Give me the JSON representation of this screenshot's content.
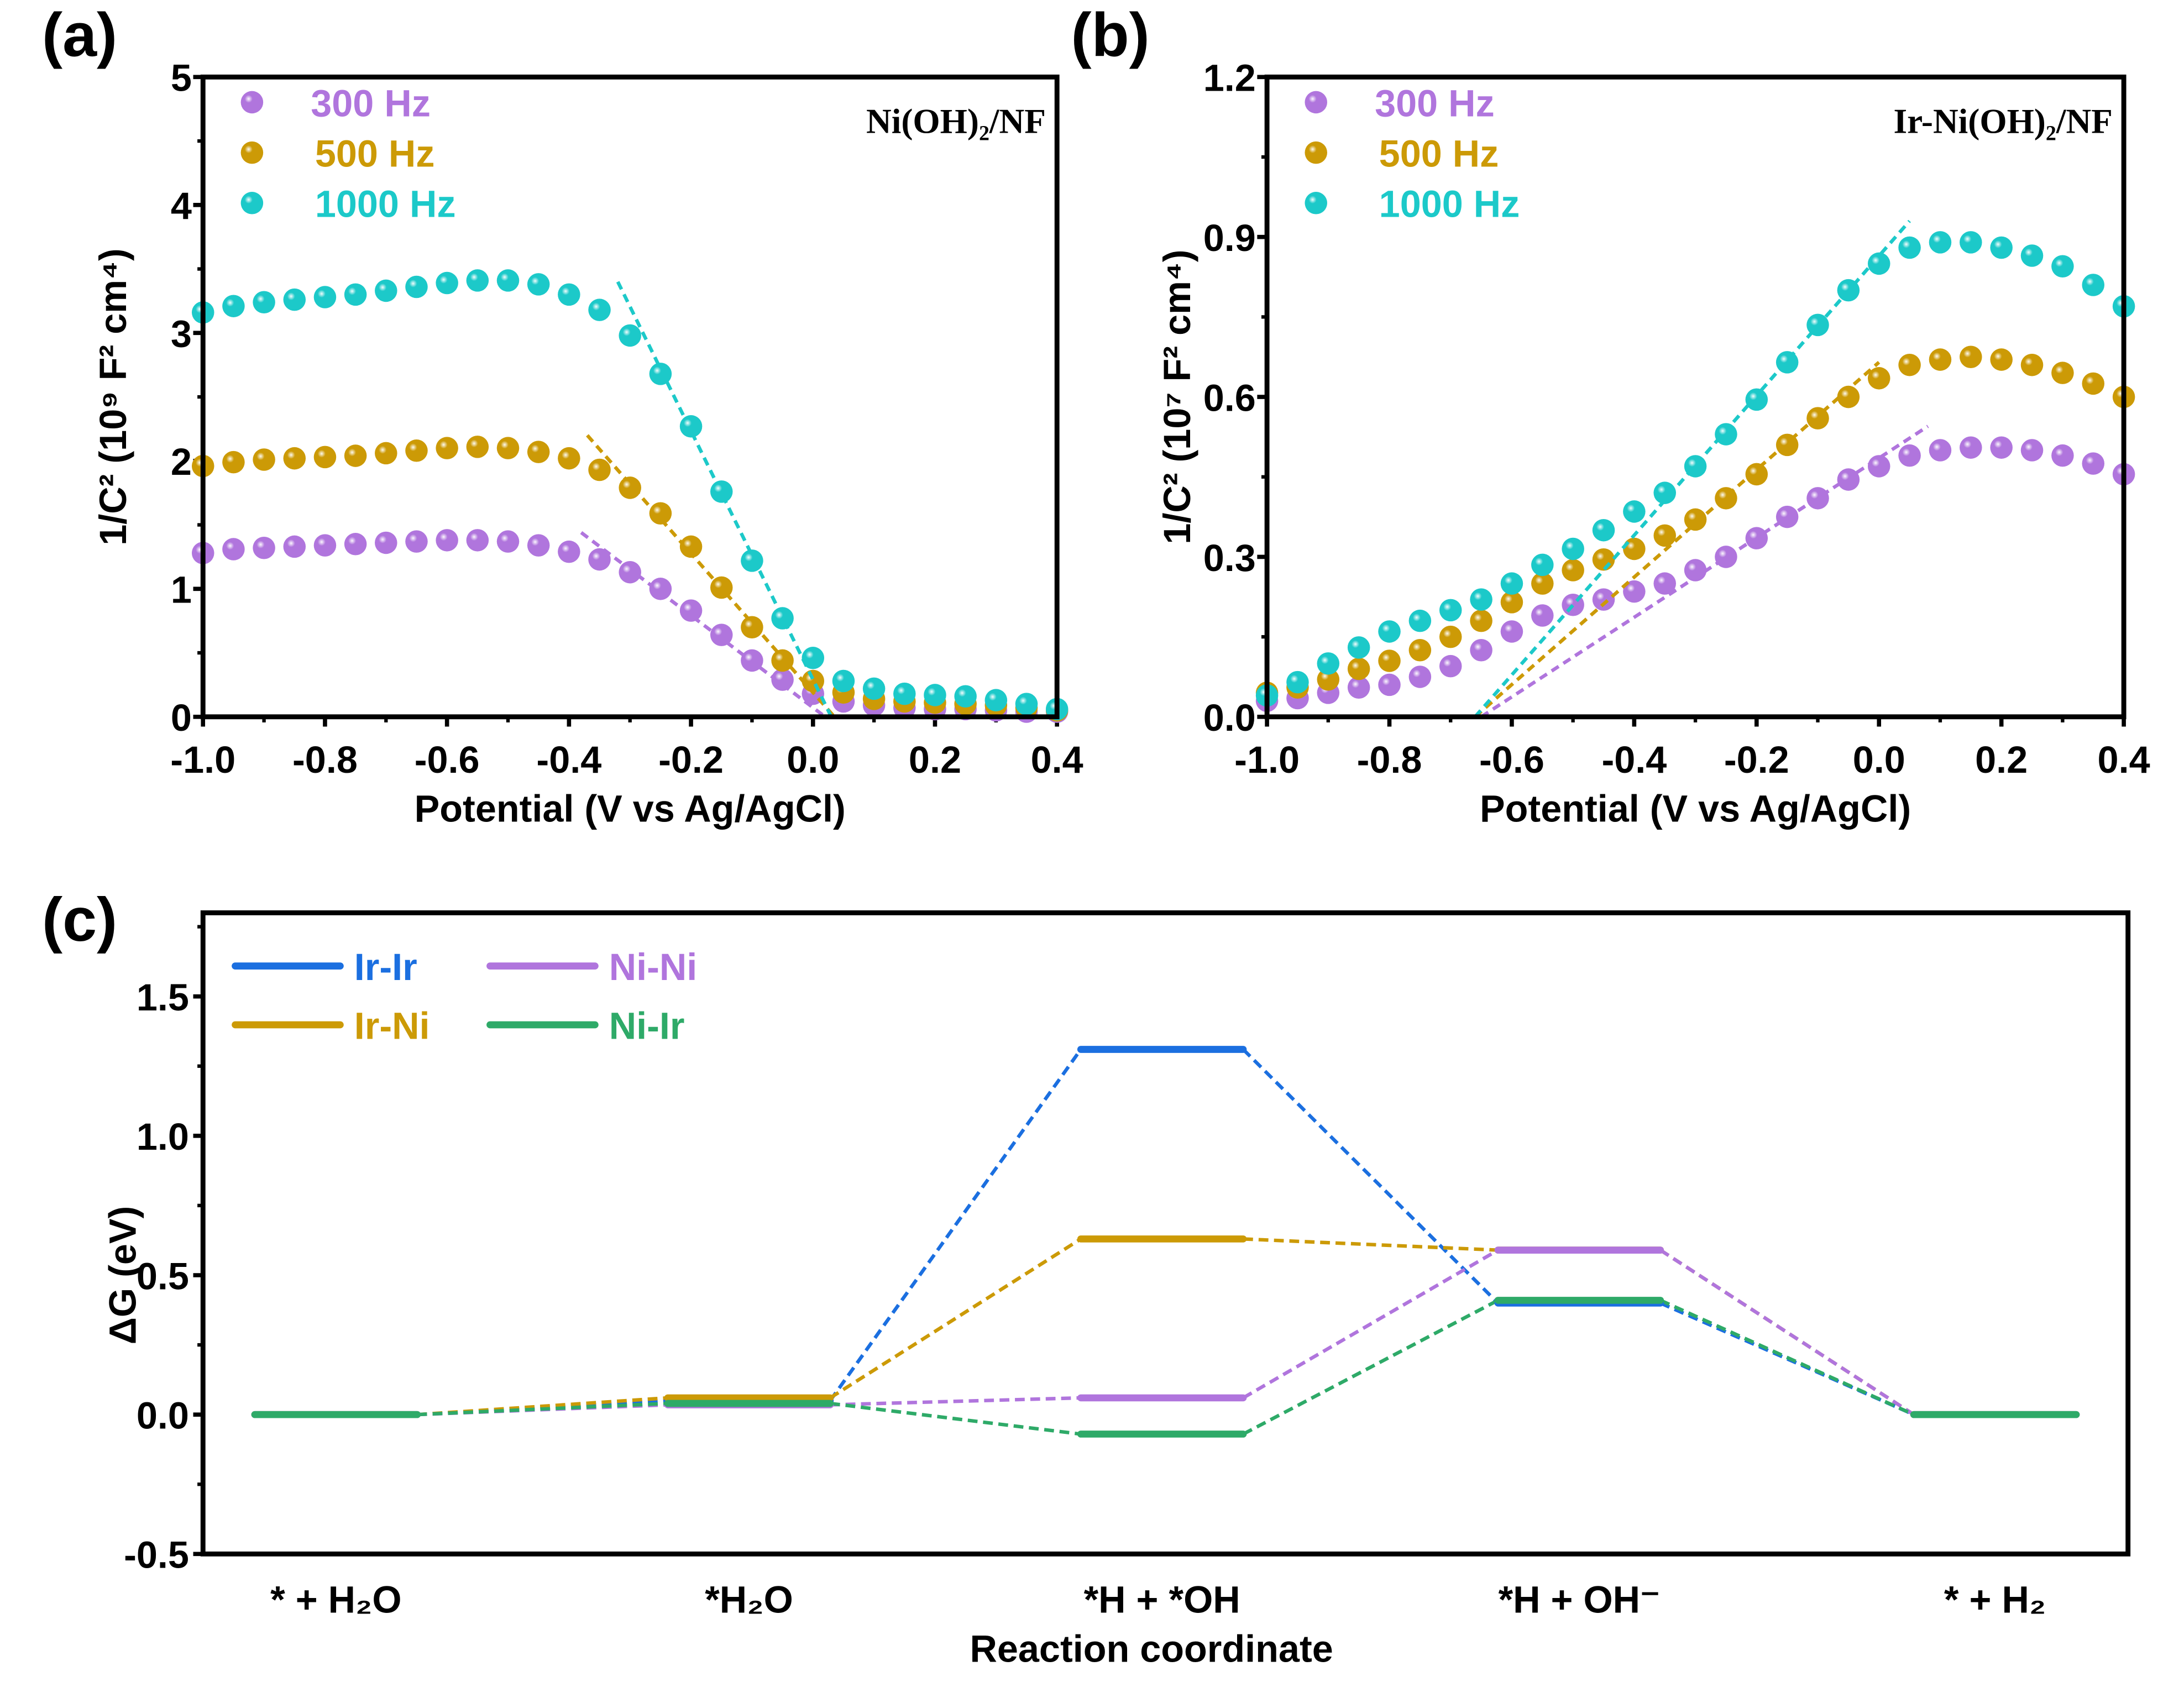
{
  "colors": {
    "300 Hz": "#b075dd",
    "500 Hz": "#cc9a06",
    "1000 Hz": "#1cc9c9",
    "Ir-Ir": "#1b6fe0",
    "Ir-Ni": "#cc9a06",
    "Ni-Ni": "#b075dd",
    "Ni-Ir": "#2eaa68"
  },
  "chart_data": [
    {
      "panel": "(a)",
      "type": "scatter",
      "inset_label": "Ni(OH)₂/NF",
      "xlabel": "Potential (V vs Ag/AgCl)",
      "ylabel": "1/C² (10⁹ F² cm⁴)",
      "xlim": [
        -1.0,
        0.4
      ],
      "ylim": [
        0,
        5
      ],
      "xticks": [
        "-1.0",
        "-0.8",
        "-0.6",
        "-0.4",
        "-0.2",
        "0.0",
        "0.2",
        "0.4"
      ],
      "yticks": [
        "0",
        "1",
        "2",
        "3",
        "4",
        "5"
      ],
      "legend": "top-left",
      "x": [
        -1.0,
        -0.95,
        -0.9,
        -0.85,
        -0.8,
        -0.75,
        -0.7,
        -0.65,
        -0.6,
        -0.55,
        -0.5,
        -0.45,
        -0.4,
        -0.35,
        -0.3,
        -0.25,
        -0.2,
        -0.15,
        -0.1,
        -0.05,
        0.0,
        0.05,
        0.1,
        0.15,
        0.2,
        0.25,
        0.3,
        0.35,
        0.4
      ],
      "series": [
        {
          "name": "300 Hz",
          "values": [
            1.28,
            1.31,
            1.32,
            1.33,
            1.34,
            1.35,
            1.36,
            1.37,
            1.38,
            1.38,
            1.37,
            1.34,
            1.29,
            1.23,
            1.13,
            1.0,
            0.83,
            0.64,
            0.44,
            0.29,
            0.18,
            0.12,
            0.09,
            0.07,
            0.06,
            0.06,
            0.05,
            0.04,
            0.04
          ],
          "fit": [
            [
              -0.38,
              1.44
            ],
            [
              0.02,
              0
            ]
          ]
        },
        {
          "name": "500 Hz",
          "values": [
            1.96,
            1.99,
            2.01,
            2.02,
            2.03,
            2.04,
            2.06,
            2.08,
            2.1,
            2.11,
            2.1,
            2.07,
            2.02,
            1.93,
            1.79,
            1.59,
            1.33,
            1.01,
            0.7,
            0.44,
            0.28,
            0.19,
            0.14,
            0.12,
            0.11,
            0.1,
            0.09,
            0.07,
            0.05
          ],
          "fit": [
            [
              -0.37,
              2.2
            ],
            [
              0.035,
              0
            ]
          ]
        },
        {
          "name": "1000 Hz",
          "values": [
            3.16,
            3.21,
            3.24,
            3.26,
            3.28,
            3.3,
            3.33,
            3.36,
            3.39,
            3.41,
            3.41,
            3.38,
            3.3,
            3.18,
            2.98,
            2.68,
            2.27,
            1.76,
            1.22,
            0.77,
            0.46,
            0.28,
            0.22,
            0.18,
            0.17,
            0.16,
            0.13,
            0.1,
            0.06
          ],
          "fit": [
            [
              -0.32,
              3.4
            ],
            [
              0.03,
              0
            ]
          ]
        }
      ]
    },
    {
      "panel": "(b)",
      "type": "scatter",
      "inset_label": "Ir-Ni(OH)₂/NF",
      "xlabel": "Potential (V vs Ag/AgCl)",
      "ylabel": "1/C² (10⁷ F² cm⁴)",
      "xlim": [
        -1.0,
        0.4
      ],
      "ylim": [
        0,
        1.2
      ],
      "xticks": [
        "-1.0",
        "-0.8",
        "-0.6",
        "-0.4",
        "-0.2",
        "0.0",
        "0.2",
        "0.4"
      ],
      "yticks": [
        "0.0",
        "0.3",
        "0.6",
        "0.9",
        "1.2"
      ],
      "legend": "top-left",
      "x": [
        -1.0,
        -0.95,
        -0.9,
        -0.85,
        -0.8,
        -0.75,
        -0.7,
        -0.65,
        -0.6,
        -0.55,
        -0.5,
        -0.45,
        -0.4,
        -0.35,
        -0.3,
        -0.25,
        -0.2,
        -0.15,
        -0.1,
        -0.05,
        0.0,
        0.05,
        0.1,
        0.15,
        0.2,
        0.25,
        0.3,
        0.35,
        0.4
      ],
      "series": [
        {
          "name": "300 Hz",
          "values": [
            0.03,
            0.035,
            0.045,
            0.055,
            0.06,
            0.075,
            0.095,
            0.125,
            0.16,
            0.19,
            0.21,
            0.22,
            0.235,
            0.25,
            0.275,
            0.3,
            0.335,
            0.375,
            0.41,
            0.445,
            0.47,
            0.49,
            0.5,
            0.505,
            0.505,
            0.5,
            0.49,
            0.475,
            0.455
          ],
          "fit": [
            [
              -0.65,
              0
            ],
            [
              0.08,
              0.545
            ]
          ]
        },
        {
          "name": "500 Hz",
          "values": [
            0.045,
            0.055,
            0.07,
            0.09,
            0.105,
            0.125,
            0.15,
            0.18,
            0.215,
            0.25,
            0.275,
            0.295,
            0.315,
            0.34,
            0.37,
            0.41,
            0.455,
            0.51,
            0.56,
            0.6,
            0.635,
            0.66,
            0.67,
            0.675,
            0.67,
            0.66,
            0.645,
            0.625,
            0.6
          ],
          "fit": [
            [
              -0.66,
              0
            ],
            [
              0.0,
              0.665
            ]
          ]
        },
        {
          "name": "1000 Hz",
          "values": [
            0.04,
            0.065,
            0.1,
            0.13,
            0.16,
            0.18,
            0.2,
            0.22,
            0.25,
            0.285,
            0.315,
            0.35,
            0.385,
            0.42,
            0.47,
            0.53,
            0.595,
            0.665,
            0.735,
            0.8,
            0.85,
            0.88,
            0.89,
            0.89,
            0.88,
            0.865,
            0.845,
            0.81,
            0.77
          ],
          "fit": [
            [
              -0.66,
              0
            ],
            [
              0.05,
              0.93
            ]
          ]
        }
      ]
    },
    {
      "panel": "(c)",
      "type": "line",
      "xlabel": "Reaction coordinate",
      "ylabel": "ΔG (eV)",
      "ylim": [
        -0.5,
        1.8
      ],
      "yticks": [
        "-0.5",
        "0.0",
        "0.5",
        "1.0",
        "1.5"
      ],
      "categories": [
        "* + H₂O",
        "*H₂O",
        "*H + *OH",
        "*H + OH⁻",
        "* + H₂"
      ],
      "legend": "top-left",
      "series": [
        {
          "name": "Ir-Ir",
          "values": [
            0,
            0.05,
            1.31,
            0.4,
            0
          ]
        },
        {
          "name": "Ir-Ni",
          "values": [
            0,
            0.06,
            0.63,
            0.59,
            0
          ]
        },
        {
          "name": "Ni-Ni",
          "values": [
            0,
            0.035,
            0.06,
            0.59,
            0
          ]
        },
        {
          "name": "Ni-Ir",
          "values": [
            0,
            0.04,
            -0.07,
            0.41,
            0
          ]
        }
      ]
    }
  ]
}
